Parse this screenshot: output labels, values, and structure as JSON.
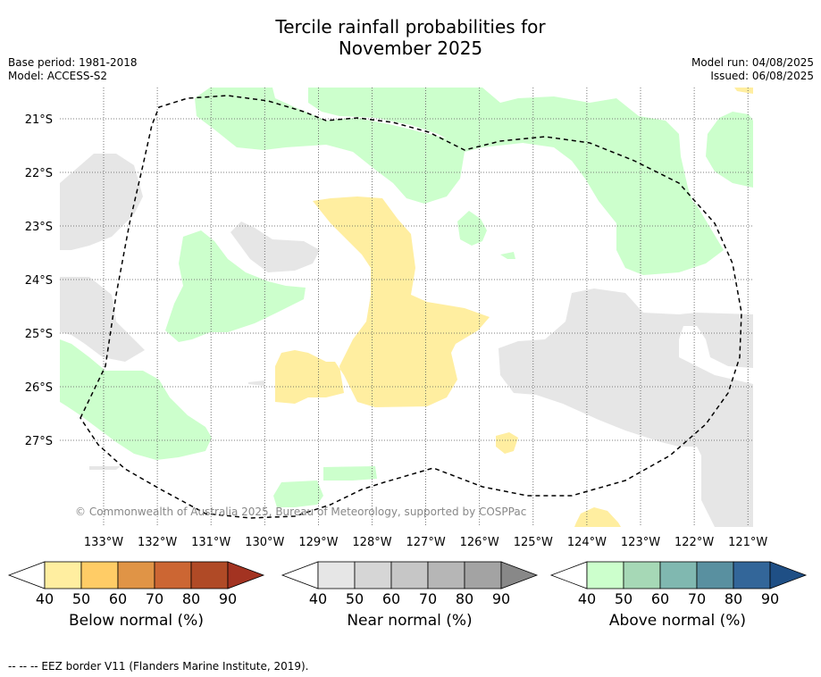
{
  "title_line1": "Tercile rainfall probabilities for",
  "title_line2": "November 2025",
  "base_period": "Base period: 1981-2018",
  "model": "Model: ACCESS-S2",
  "model_run": "Model run: 04/08/2025",
  "issued": "Issued: 06/08/2025",
  "copyright": "© Commonwealth of Australia 2025, Bureau of Meteorology, supported by COSPPac",
  "lat_labels": [
    "21°S",
    "22°S",
    "23°S",
    "24°S",
    "25°S",
    "26°S",
    "27°S"
  ],
  "lon_labels": [
    "133°W",
    "132°W",
    "131°W",
    "130°W",
    "129°W",
    "128°W",
    "127°W",
    "126°W",
    "125°W",
    "124°W",
    "123°W",
    "122°W",
    "121°W"
  ],
  "colorbars": [
    {
      "title": "Below normal (%)",
      "ticks": [
        "40",
        "50",
        "60",
        "70",
        "80",
        "90"
      ],
      "colors": [
        "#ffeea0",
        "#ffcc66",
        "#e09446",
        "#cc6633",
        "#b04a26",
        "#a33321"
      ]
    },
    {
      "title": "Near normal (%)",
      "ticks": [
        "40",
        "50",
        "60",
        "70",
        "80",
        "90"
      ],
      "colors": [
        "#e6e6e6",
        "#d6d6d6",
        "#c6c6c6",
        "#b6b6b6",
        "#a3a3a3",
        "#888888"
      ]
    },
    {
      "title": "Above normal (%)",
      "ticks": [
        "40",
        "50",
        "60",
        "70",
        "80",
        "90"
      ],
      "colors": [
        "#ccffcc",
        "#a6d8b6",
        "#80b8b0",
        "#5990a0",
        "#336699",
        "#1f4f85"
      ]
    }
  ],
  "colors": {
    "below": "#ffeea0",
    "near": "#e6e6e6",
    "above": "#ccffcc",
    "grid": "#555555",
    "eez": "#000000"
  },
  "footer": "--  --  -- EEZ border V11 (Flanders Marine Institute, 2019)."
}
